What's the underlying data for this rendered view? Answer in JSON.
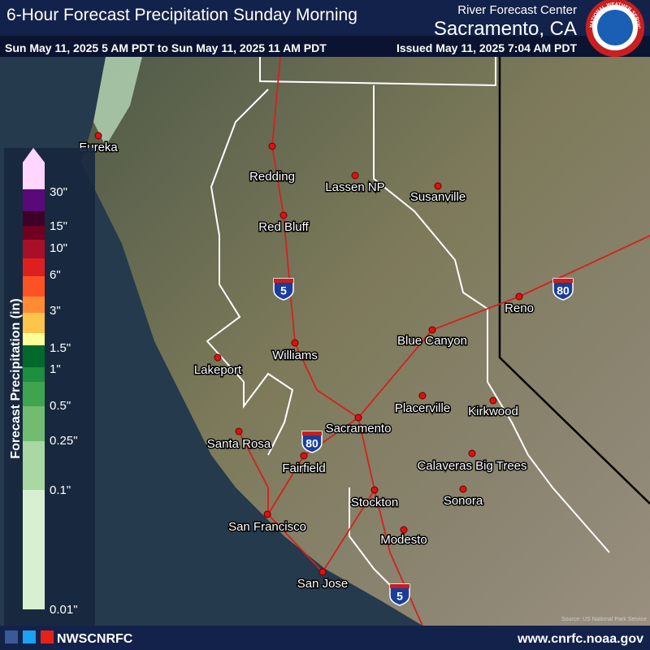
{
  "header": {
    "title": "6-Hour Forecast Precipitation Sunday Morning",
    "center": "River Forecast Center",
    "office": "Sacramento, CA",
    "period": "Sun May 11, 2025 5 AM PDT to Sun May 11, 2025 11 AM PDT",
    "issued": "Issued May 11, 2025 7:04 AM PDT",
    "logo": "NATIONAL WEATHER SERVICE"
  },
  "legend": {
    "title": "Forecast Precipitation (in)",
    "labels": [
      "30\"",
      "15\"",
      "10\"",
      "6\"",
      "3\"",
      "1.5\"",
      "1\"",
      "0.5\"",
      "0.25\"",
      "0.1\"",
      "0.01\""
    ],
    "colors": [
      "#ffd6ff",
      "#5a0a78",
      "#3e0028",
      "#700020",
      "#a8102a",
      "#dc2020",
      "#ff5224",
      "#ff8c34",
      "#ffc44a",
      "#ffff98",
      "#00692c",
      "#1e8e40",
      "#3ea450",
      "#72bc72",
      "#a9d8a2",
      "#d9f0d0"
    ]
  },
  "cities": [
    "Eureka",
    "Redding",
    "Lassen NP",
    "Susanville",
    "Red Bluff",
    "Reno",
    "Blue Canyon",
    "Williams",
    "Lakeport",
    "Placerville",
    "Kirkwood",
    "Sacramento",
    "Santa Rosa",
    "Fairfield",
    "Calaveras Big Trees",
    "Stockton",
    "Sonora",
    "San Francisco",
    "Modesto",
    "San Jose"
  ],
  "shields": [
    "5",
    "80",
    "80",
    "5"
  ],
  "source": "Source: US National Park Service",
  "footer": {
    "social": "NWSCNRFC",
    "url": "www.cnrfc.noaa.gov"
  }
}
